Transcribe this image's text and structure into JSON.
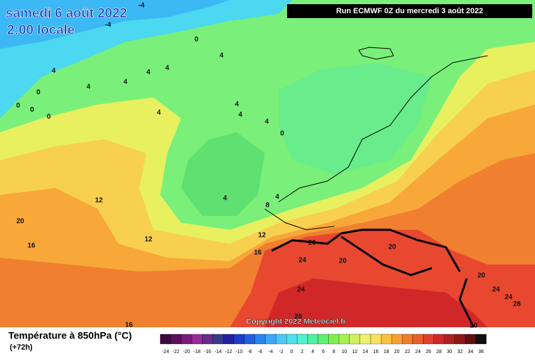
{
  "header": {
    "date": "samedi 6 août 2022",
    "time": "2:00 locale",
    "run": "Run ECMWF 0Z du mercredi 3 août 2022"
  },
  "copyright": "Copyright 2022 Meteociel.fr",
  "footer": {
    "title": "Température à 850hPa (°C)",
    "lead": "(+72h)"
  },
  "contour_labels": [
    -4,
    -4,
    0,
    4,
    4,
    4,
    4,
    4,
    4,
    0,
    0,
    0,
    0,
    4,
    4,
    4,
    4,
    0,
    12,
    20,
    16,
    12,
    4,
    8,
    4,
    12,
    16,
    20,
    20,
    20,
    24,
    24,
    20,
    24,
    24,
    28,
    28,
    16,
    20
  ],
  "colorbar": {
    "labels": [
      -24,
      -22,
      -20,
      -18,
      -16,
      -14,
      -12,
      -10,
      -8,
      -6,
      -4,
      -2,
      0,
      2,
      4,
      6,
      8,
      10,
      12,
      14,
      16,
      18,
      20,
      22,
      24,
      26,
      28,
      30,
      32,
      34,
      36
    ],
    "colors": [
      "#3d0a3d",
      "#5c0f5c",
      "#7a1a7a",
      "#9a2a9a",
      "#6a2a8a",
      "#3a3a8a",
      "#2020a0",
      "#1e3cc8",
      "#2060e0",
      "#2a85f0",
      "#3ca8f5",
      "#4cc8f5",
      "#50e0f0",
      "#50f0d0",
      "#50f0a0",
      "#60f070",
      "#80f050",
      "#a8f050",
      "#d0f060",
      "#f0f070",
      "#f8e060",
      "#f8c040",
      "#f8a030",
      "#f08028",
      "#e86028",
      "#e04030",
      "#d02828",
      "#b02020",
      "#901818",
      "#601010",
      "#101010"
    ]
  }
}
